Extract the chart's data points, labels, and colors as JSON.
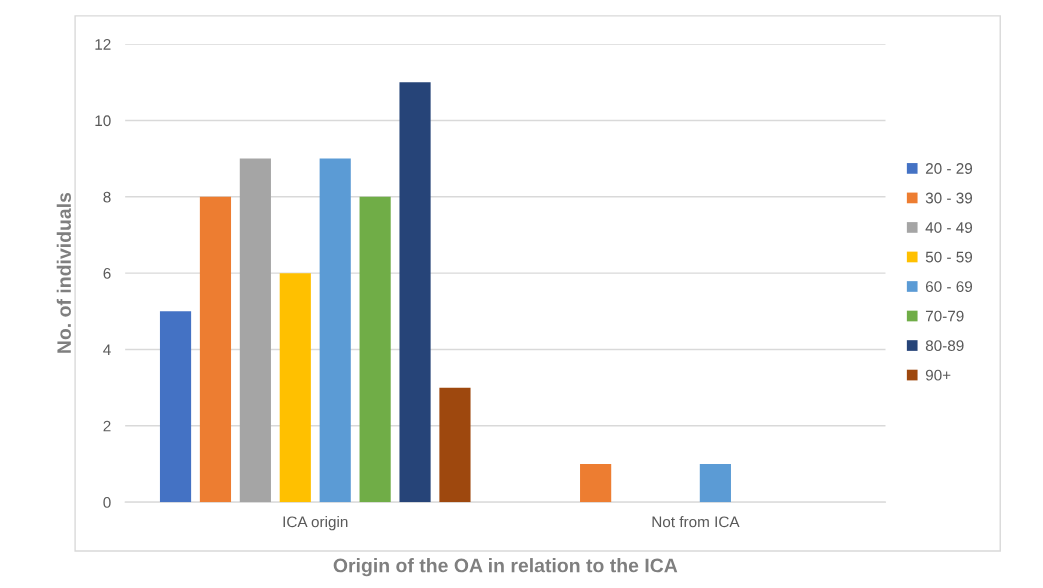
{
  "chart_data": {
    "type": "bar",
    "xlabel": "Origin of the OA in relation to the ICA",
    "ylabel": "No. of individuals",
    "categories": [
      "ICA origin",
      "Not from ICA"
    ],
    "series": [
      {
        "name": "20 - 29",
        "color": "#4472c4",
        "values": [
          5,
          0
        ]
      },
      {
        "name": "30 - 39",
        "color": "#ed7d31",
        "values": [
          8,
          1
        ]
      },
      {
        "name": "40 - 49",
        "color": "#a5a5a5",
        "values": [
          9,
          0
        ]
      },
      {
        "name": "50 - 59",
        "color": "#ffc000",
        "values": [
          6,
          0
        ]
      },
      {
        "name": "60 - 69",
        "color": "#5b9bd5",
        "values": [
          9,
          1
        ]
      },
      {
        "name": "70-79",
        "color": "#70ad47",
        "values": [
          8,
          0
        ]
      },
      {
        "name": "80-89",
        "color": "#264478",
        "values": [
          11,
          0
        ]
      },
      {
        "name": "90+",
        "color": "#9e480e",
        "values": [
          3,
          0
        ]
      }
    ],
    "ylim": [
      0,
      12
    ],
    "yticks": [
      0,
      2,
      4,
      6,
      8,
      10,
      12
    ],
    "grid": "y",
    "legend": "right"
  }
}
